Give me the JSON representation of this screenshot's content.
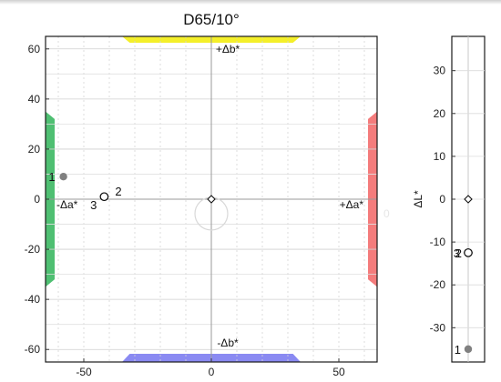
{
  "chart_data": [
    {
      "type": "scatter",
      "title": "D65/10°",
      "xlim": [
        -65,
        65
      ],
      "ylim": [
        -65,
        65
      ],
      "xticks": [
        -50,
        0,
        50
      ],
      "yticks": [
        -60,
        -40,
        -20,
        0,
        20,
        40,
        60
      ],
      "grid": true,
      "axis_labels": {
        "pos_a": "+Δa*",
        "neg_a": "-Δa*",
        "pos_b": "+Δb*",
        "neg_b": "-Δb*"
      },
      "band_colors": {
        "pos_a": "#f47c7c",
        "neg_a": "#4fbf72",
        "pos_b": "#f4ef2a",
        "neg_b": "#8a8af2"
      },
      "points": [
        {
          "label": "1",
          "x": -58,
          "y": 9,
          "style": "filled"
        },
        {
          "label": "2",
          "x": -42,
          "y": 1,
          "style": "open"
        },
        {
          "label": "3",
          "x": -42,
          "y": 1,
          "style": "open"
        },
        {
          "label": "",
          "x": 0,
          "y": 0,
          "style": "diamond"
        }
      ],
      "tolerance_circle_label": "0"
    },
    {
      "type": "scatter",
      "ylabel": "ΔL*",
      "ylim": [
        -38,
        38
      ],
      "yticks": [
        -30,
        -20,
        -10,
        0,
        10,
        20,
        30
      ],
      "points": [
        {
          "label": "",
          "y": 0,
          "style": "diamond"
        },
        {
          "label": "2",
          "y": -12.5,
          "style": "open"
        },
        {
          "label": "3",
          "y": -12.5,
          "style": "open"
        },
        {
          "label": "1",
          "y": -35,
          "style": "filled"
        }
      ]
    }
  ]
}
